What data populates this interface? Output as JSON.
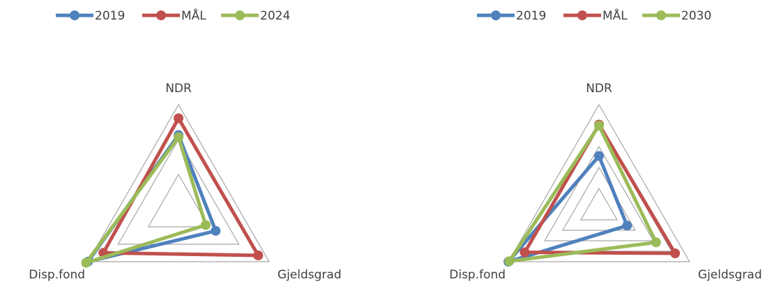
{
  "chart_data": [
    {
      "type": "radar",
      "categories": [
        "NDR",
        "Gjeldsgrad",
        "Disp.fond"
      ],
      "series": [
        {
          "name": "2019",
          "color": "#4F81BD",
          "values": [
            0.71,
            0.41,
            1.0
          ]
        },
        {
          "name": "MÅL",
          "color": "#C0504D",
          "values": [
            0.87,
            0.88,
            0.83
          ]
        },
        {
          "name": "2024",
          "color": "#9BBB59",
          "values": [
            0.69,
            0.3,
            1.02
          ]
        }
      ],
      "rlim": [
        0,
        1
      ],
      "grid_levels": 3,
      "legend_position": "top"
    },
    {
      "type": "radar",
      "categories": [
        "NDR",
        "Gjeldsgrad",
        "Disp.fond"
      ],
      "series": [
        {
          "name": "2019",
          "color": "#4F81BD",
          "values": [
            0.51,
            0.31,
            1.0
          ]
        },
        {
          "name": "MÅL",
          "color": "#C0504D",
          "values": [
            0.81,
            0.84,
            0.82
          ]
        },
        {
          "name": "2030",
          "color": "#9BBB59",
          "values": [
            0.8,
            0.63,
            0.99
          ]
        }
      ],
      "rlim": [
        0,
        1
      ],
      "grid_levels": 5,
      "legend_position": "top"
    }
  ]
}
